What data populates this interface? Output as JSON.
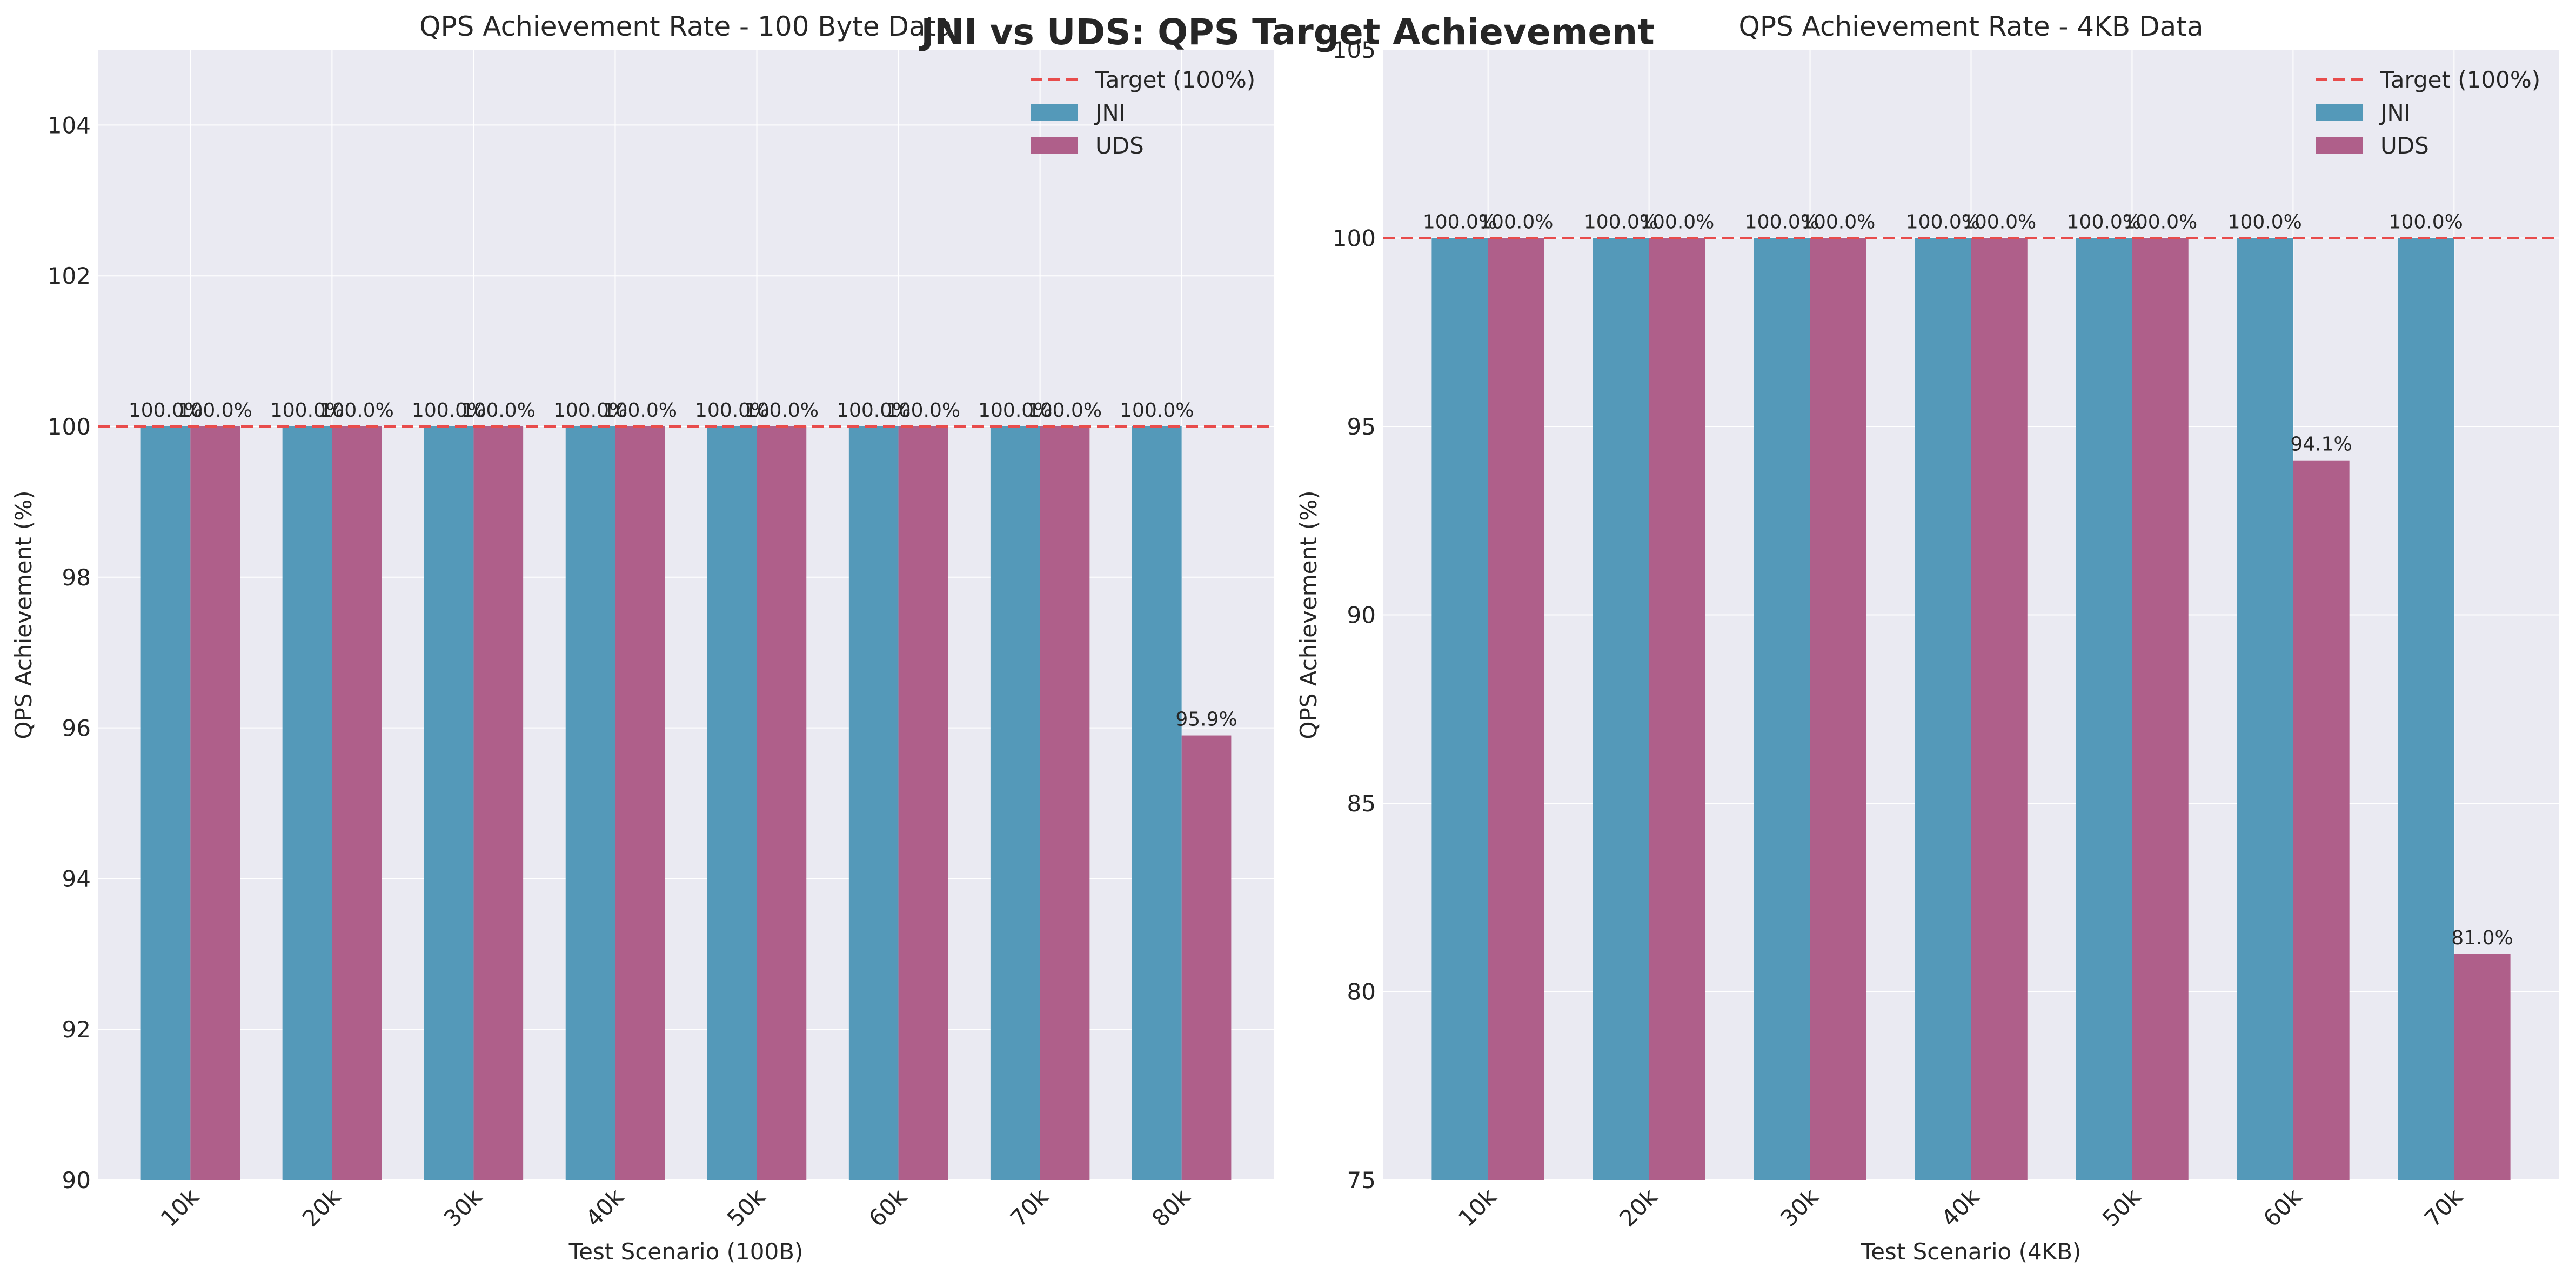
{
  "figure_title": "JNI vs UDS: QPS Target Achievement",
  "colors": {
    "jni": "#5499b9",
    "uds": "#af5f8a",
    "target": "#e84c4c",
    "panel_bg": "#eaeaf2",
    "grid": "#ffffff"
  },
  "chart_data": [
    {
      "type": "bar",
      "title": "QPS Achievement Rate - 100 Byte Data",
      "xlabel": "Test Scenario (100B)",
      "ylabel": "QPS Achievement (%)",
      "ylim": [
        90,
        105
      ],
      "yticks": [
        90,
        92,
        94,
        96,
        98,
        100,
        102,
        104
      ],
      "categories": [
        "10k",
        "20k",
        "30k",
        "40k",
        "50k",
        "60k",
        "70k",
        "80k"
      ],
      "target": 100,
      "target_label": "Target (100%)",
      "legend_position": "top-right",
      "grid": true,
      "series": [
        {
          "name": "JNI",
          "values": [
            100,
            100,
            100,
            100,
            100,
            100,
            100,
            100
          ],
          "labels": [
            "100.0%",
            "100.0%",
            "100.0%",
            "100.0%",
            "100.0%",
            "100.0%",
            "100.0%",
            "100.0%"
          ]
        },
        {
          "name": "UDS",
          "values": [
            100,
            100,
            100,
            100,
            100,
            100,
            100,
            95.9
          ],
          "labels": [
            "100.0%",
            "100.0%",
            "100.0%",
            "100.0%",
            "100.0%",
            "100.0%",
            "100.0%",
            "95.9%"
          ]
        }
      ]
    },
    {
      "type": "bar",
      "title": "QPS Achievement Rate - 4KB Data",
      "xlabel": "Test Scenario (4KB)",
      "ylabel": "QPS Achievement (%)",
      "ylim": [
        75,
        105
      ],
      "yticks": [
        75,
        80,
        85,
        90,
        95,
        100,
        105
      ],
      "categories": [
        "10k",
        "20k",
        "30k",
        "40k",
        "50k",
        "60k",
        "70k"
      ],
      "target": 100,
      "target_label": "Target (100%)",
      "legend_position": "top-right",
      "grid": true,
      "series": [
        {
          "name": "JNI",
          "values": [
            100,
            100,
            100,
            100,
            100,
            100,
            100
          ],
          "labels": [
            "100.0%",
            "100.0%",
            "100.0%",
            "100.0%",
            "100.0%",
            "100.0%",
            "100.0%"
          ]
        },
        {
          "name": "UDS",
          "values": [
            100,
            100,
            100,
            100,
            100,
            94.1,
            81.0
          ],
          "labels": [
            "100.0%",
            "100.0%",
            "100.0%",
            "100.0%",
            "100.0%",
            "94.1%",
            "81.0%"
          ]
        }
      ]
    }
  ]
}
